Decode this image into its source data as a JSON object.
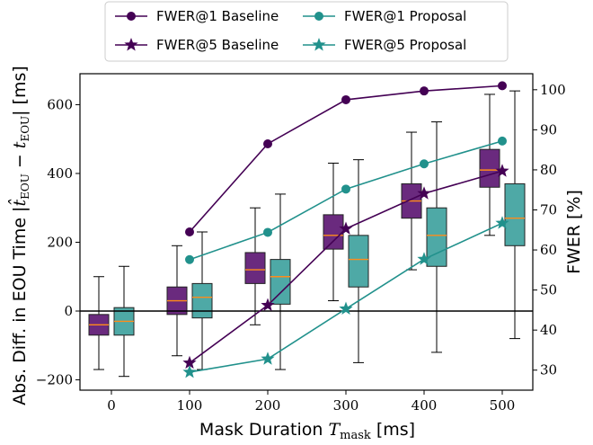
{
  "chart_data": {
    "type": "boxplot+line",
    "xlabel": "Mask Duration T_mask [ms]",
    "ylabel_left": "Abs. Diff. in EOU Time |t̂_EOU − t_EOU| [ms]",
    "ylabel_right": "FWER [%]",
    "categories": [
      0,
      100,
      200,
      300,
      400,
      500
    ],
    "x_tick_labels": [
      "0",
      "100",
      "200",
      "300",
      "400",
      "500"
    ],
    "ylim_left": [
      -230,
      690
    ],
    "yticks_left": [
      -200,
      0,
      200,
      400,
      600
    ],
    "ytick_labels_left": [
      "−200",
      "0",
      "200",
      "400",
      "600"
    ],
    "ylim_right": [
      25,
      104
    ],
    "yticks_right": [
      30,
      40,
      50,
      60,
      70,
      80,
      90,
      100
    ],
    "ytick_labels_right": [
      "30",
      "40",
      "50",
      "60",
      "70",
      "80",
      "90",
      "100"
    ],
    "legend_position": "top-center",
    "colors": {
      "baseline": "#440154",
      "baseline_box": "#6a2a7e",
      "proposal": "#21918c",
      "proposal_box": "#4ea9a6",
      "median": "#ff8c1a"
    },
    "boxes": {
      "baseline": [
        {
          "x": 0,
          "whisker_low": -170,
          "q1": -70,
          "median": -40,
          "q3": -10,
          "whisker_high": 100
        },
        {
          "x": 100,
          "whisker_low": -130,
          "q1": -10,
          "median": 30,
          "q3": 70,
          "whisker_high": 190
        },
        {
          "x": 200,
          "whisker_low": -40,
          "q1": 80,
          "median": 120,
          "q3": 170,
          "whisker_high": 300
        },
        {
          "x": 300,
          "whisker_low": 30,
          "q1": 180,
          "median": 220,
          "q3": 280,
          "whisker_high": 430
        },
        {
          "x": 400,
          "whisker_low": 120,
          "q1": 270,
          "median": 320,
          "q3": 370,
          "whisker_high": 520
        },
        {
          "x": 500,
          "whisker_low": 220,
          "q1": 360,
          "median": 410,
          "q3": 470,
          "whisker_high": 630
        }
      ],
      "proposal": [
        {
          "x": 0,
          "whisker_low": -190,
          "q1": -70,
          "median": -30,
          "q3": 10,
          "whisker_high": 130
        },
        {
          "x": 100,
          "whisker_low": -170,
          "q1": -20,
          "median": 40,
          "q3": 80,
          "whisker_high": 230
        },
        {
          "x": 200,
          "whisker_low": -170,
          "q1": 20,
          "median": 100,
          "q3": 150,
          "whisker_high": 340
        },
        {
          "x": 300,
          "whisker_low": -150,
          "q1": 70,
          "median": 150,
          "q3": 220,
          "whisker_high": 440
        },
        {
          "x": 400,
          "whisker_low": -120,
          "q1": 130,
          "median": 220,
          "q3": 300,
          "whisker_high": 550
        },
        {
          "x": 500,
          "whisker_low": -80,
          "q1": 190,
          "median": 270,
          "q3": 370,
          "whisker_high": 640
        }
      ]
    },
    "series": [
      {
        "name": "FWER@1 Baseline",
        "marker": "circle",
        "color": "#440154",
        "x": [
          100,
          200,
          300,
          400,
          500
        ],
        "values": [
          64.5,
          86.5,
          97.5,
          99.7,
          101.0
        ]
      },
      {
        "name": "FWER@5 Baseline",
        "marker": "star",
        "color": "#440154",
        "x": [
          100,
          200,
          300,
          400,
          500
        ],
        "values": [
          31.8,
          46.2,
          65.3,
          74.1,
          79.7
        ]
      },
      {
        "name": "FWER@1 Proposal",
        "marker": "circle",
        "color": "#21918c",
        "x": [
          100,
          200,
          300,
          400,
          500
        ],
        "values": [
          57.6,
          64.4,
          75.2,
          81.5,
          87.2
        ]
      },
      {
        "name": "FWER@5 Proposal",
        "marker": "star",
        "color": "#21918c",
        "x": [
          100,
          200,
          300,
          400,
          500
        ],
        "values": [
          29.5,
          32.8,
          45.3,
          57.7,
          66.7
        ]
      }
    ]
  }
}
